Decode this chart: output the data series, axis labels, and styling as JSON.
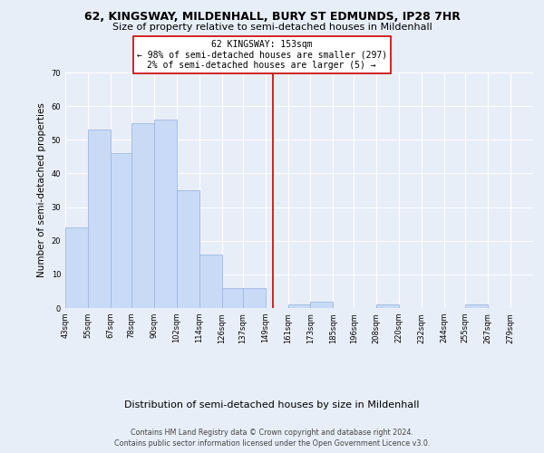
{
  "title": "62, KINGSWAY, MILDENHALL, BURY ST EDMUNDS, IP28 7HR",
  "subtitle": "Size of property relative to semi-detached houses in Mildenhall",
  "xlabel": "Distribution of semi-detached houses by size in Mildenhall",
  "ylabel": "Number of semi-detached properties",
  "footnote1": "Contains HM Land Registry data © Crown copyright and database right 2024.",
  "footnote2": "Contains public sector information licensed under the Open Government Licence v3.0.",
  "bar_left_edges": [
    43,
    55,
    67,
    78,
    90,
    102,
    114,
    126,
    137,
    149,
    161,
    173,
    185,
    196,
    208,
    220,
    232,
    244,
    255,
    267
  ],
  "bar_widths": [
    12,
    12,
    11,
    12,
    12,
    12,
    12,
    11,
    12,
    12,
    12,
    12,
    11,
    12,
    12,
    12,
    12,
    11,
    12,
    12
  ],
  "bar_heights": [
    24,
    53,
    46,
    55,
    56,
    35,
    16,
    6,
    6,
    0,
    1,
    2,
    0,
    0,
    1,
    0,
    0,
    0,
    1,
    0
  ],
  "tick_labels": [
    "43sqm",
    "55sqm",
    "67sqm",
    "78sqm",
    "90sqm",
    "102sqm",
    "114sqm",
    "126sqm",
    "137sqm",
    "149sqm",
    "161sqm",
    "173sqm",
    "185sqm",
    "196sqm",
    "208sqm",
    "220sqm",
    "232sqm",
    "244sqm",
    "255sqm",
    "267sqm",
    "279sqm"
  ],
  "tick_positions": [
    43,
    55,
    67,
    78,
    90,
    102,
    114,
    126,
    137,
    149,
    161,
    173,
    185,
    196,
    208,
    220,
    232,
    244,
    255,
    267,
    279
  ],
  "bar_color": "#c8daf5",
  "bar_edge_color": "#a0b8e0",
  "highlight_x": 153,
  "highlight_color": "#cc0000",
  "annotation_title": "62 KINGSWAY: 153sqm",
  "annotation_line1": "← 98% of semi-detached houses are smaller (297)",
  "annotation_line2": "2% of semi-detached houses are larger (5) →",
  "annotation_box_color": "#ffffff",
  "annotation_box_edge": "#cc0000",
  "ylim": [
    0,
    70
  ],
  "yticks": [
    0,
    10,
    20,
    30,
    40,
    50,
    60,
    70
  ],
  "xlim_left": 43,
  "xlim_right": 291,
  "background_color": "#e8eef8",
  "grid_color": "#ffffff",
  "title_fontsize": 9.0,
  "subtitle_fontsize": 8.0,
  "ylabel_fontsize": 7.5,
  "tick_fontsize": 6.0,
  "annotation_fontsize": 7.0,
  "xlabel_fontsize": 8.0,
  "footnote_fontsize": 5.8
}
